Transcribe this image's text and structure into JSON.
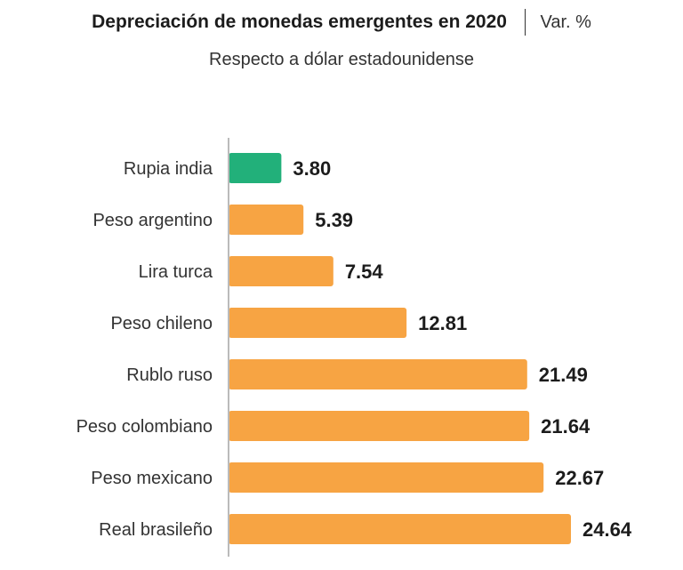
{
  "header": {
    "title": "Depreciación de monedas emergentes en 2020",
    "unit": "Var. %",
    "subtitle": "Respecto a dólar estadounidense"
  },
  "colors": {
    "highlight": "#22b07a",
    "default": "#f7a443",
    "axis": "#bbbbbb"
  },
  "chart_data": {
    "type": "bar",
    "orientation": "horizontal",
    "title": "Depreciación de monedas emergentes en 2020",
    "subtitle": "Respecto a dólar estadounidense",
    "unit": "Var. %",
    "categories": [
      "Rupia india",
      "Peso argentino",
      "Lira turca",
      "Peso chileno",
      "Rublo ruso",
      "Peso colombiano",
      "Peso mexicano",
      "Real brasileño"
    ],
    "values": [
      3.8,
      5.39,
      7.54,
      12.81,
      21.49,
      21.64,
      22.67,
      24.64
    ],
    "labels": [
      "3.80",
      "5.39",
      "7.54",
      "12.81",
      "21.49",
      "21.64",
      "22.67",
      "24.64"
    ],
    "highlight": [
      "Rupia india"
    ],
    "xlim": [
      0,
      25
    ],
    "grid": false,
    "legend": "none"
  }
}
